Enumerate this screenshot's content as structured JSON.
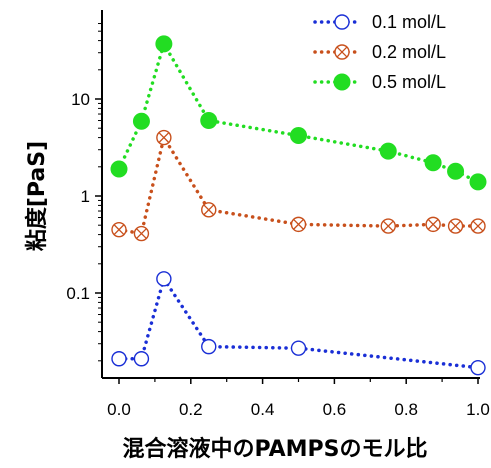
{
  "chart_data": {
    "type": "line",
    "xlabel": "混合溶液中のPAMPSのモル比",
    "ylabel": "粘度[PaS]",
    "xlim": [
      0.0,
      1.0
    ],
    "ylim": [
      0.012,
      60
    ],
    "yscale": "log",
    "xticks": [
      "0.0",
      "0.2",
      "0.4",
      "0.6",
      "0.8",
      "1.0"
    ],
    "yticks": [
      {
        "value": 0.1,
        "label": "0.1"
      },
      {
        "value": 1,
        "label": "1"
      },
      {
        "value": 10,
        "label": "10"
      }
    ],
    "legend": "top-right",
    "grid": false,
    "series": [
      {
        "name": "0.1 mol/L",
        "color": "#1a2fd6",
        "marker": "open-circle",
        "x": [
          0.0,
          0.0625,
          0.125,
          0.25,
          0.5,
          1.0
        ],
        "y": [
          0.021,
          0.021,
          0.14,
          0.028,
          0.027,
          0.017
        ]
      },
      {
        "name": "0.2 mol/L",
        "color": "#c8501c",
        "marker": "circle-x",
        "x": [
          0.0,
          0.0625,
          0.125,
          0.25,
          0.5,
          0.75,
          0.875,
          0.9375,
          1.0
        ],
        "y": [
          0.45,
          0.41,
          4.0,
          0.72,
          0.51,
          0.49,
          0.51,
          0.49,
          0.49
        ]
      },
      {
        "name": "0.5 mol/L",
        "color": "#22dd22",
        "marker": "filled-circle",
        "x": [
          0.0,
          0.0625,
          0.125,
          0.25,
          0.5,
          0.75,
          0.875,
          0.9375,
          1.0
        ],
        "y": [
          1.9,
          5.9,
          37,
          6.0,
          4.2,
          2.9,
          2.2,
          1.8,
          1.4
        ]
      }
    ]
  }
}
